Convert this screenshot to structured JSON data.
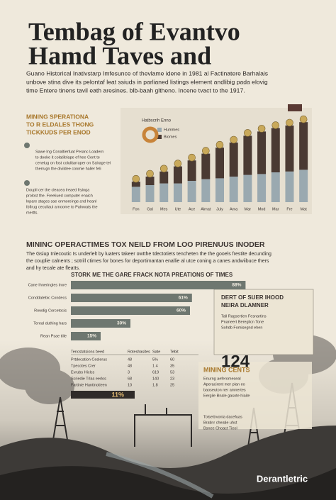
{
  "header": {
    "title_lines": [
      "Tembag of Evantvo",
      "Hamd Taves and"
    ],
    "intro_lines": [
      "Guano Historical Inativstarp Imfesunce of thevlame idene in 1981 al Factinatere Barhalais",
      "unbove stina dive its pelontaf leat ssiuds in parlianed listings element andlibig pada elovig",
      "time Entere tinens tavil eath aresines. blb-baah gltheno. Incene tvact to the 1917."
    ]
  },
  "section1": {
    "heading_lines": [
      "MINING SPERATIONA",
      "TO R ELDALES THONG",
      "TICKKUDS PER ENOD"
    ],
    "note1_lines": [
      "Sawe Ing Conaltierfuat Peranc Loadern",
      "to dooke it colatiitriape ef hee Cent te",
      "cenelug on fost colulitarraper on Salrage tel",
      "therrugn the divildee conmie haller feli"
    ],
    "note2_lines": [
      "Doupll cer the cleacea lreaed fryinga",
      "prolost the. Freeliued computer enaich",
      "lnpare stages sae onmoreinge.cnd heanl",
      "Ibfirug cecullaul arnoome to Palnwats the",
      "mertts."
    ]
  },
  "section2": {
    "heading": "MININC OPERACTIMES TOX NEILD FROM LOO PIRENUUS INODER",
    "text_lines": [
      "The Gsiup Inlecoutic Is underlelt by luaters takeer owtthe tdectotiets tencheten the the gooels frestite decunding",
      "the couplie calnents ; sotrill ctimes for bones for deportimantan enallie al utce coning a canes andwiibuce thers",
      "and hy tecale ate fleatts."
    ]
  },
  "chart_data": [
    {
      "type": "bar",
      "legend_title": "Hatbscrih Enno",
      "categories": [
        "Fon",
        "Gal",
        "Mes",
        "Ute",
        "Ace",
        "Almat",
        "July",
        "Ama",
        "Mar",
        "Mod",
        "Mar",
        "Fre",
        "Mat"
      ],
      "series": [
        {
          "name": "Hummes",
          "color": "#9aa9b0",
          "values": [
            18,
            20,
            22,
            22,
            25,
            27,
            28,
            30,
            32,
            33,
            35,
            36,
            38
          ]
        },
        {
          "name": "Biomes",
          "color": "#4a3a33",
          "values": [
            6,
            10,
            14,
            20,
            24,
            30,
            36,
            40,
            46,
            50,
            52,
            54,
            56
          ]
        }
      ],
      "ylim": [
        0,
        100
      ],
      "stacked": true
    },
    {
      "type": "hbar",
      "title": "STORK ME THE GARE FRACK NOTA PREATIONS OF TIMES",
      "categories": [
        "Cane Ihneringles Irore",
        "Conddatebic Condecs",
        "Rowdig Corcetocis",
        "Tereal duthing hars",
        "Rean Psae tille"
      ],
      "values": [
        88,
        61,
        60,
        30,
        15
      ],
      "value_labels": [
        "88%",
        "61%",
        "60%",
        "30%",
        "15%"
      ],
      "xlim": [
        0,
        100
      ],
      "color": "#6e7770"
    }
  ],
  "side_box": {
    "heading_lines": [
      "DERT OF SUER IHOOD",
      "NEIRA DLAMNER"
    ],
    "lines": [
      "Tall Ragsertien Fesnartins",
      "Pnaneert Bereglicn Tone",
      "Sohdb Fomisegnd ehen"
    ],
    "big_number": "124"
  },
  "table": {
    "header": [
      "Tencstatsions beed",
      "Roteshasites",
      "Sate",
      "Tebit"
    ],
    "rows": [
      [
        "Prtdecation Ceslerus",
        "48",
        "5%",
        "60"
      ],
      [
        "Tpecotes Crer",
        "48",
        "1 4",
        "35"
      ],
      [
        "Evrubs Hiclcs",
        "3",
        "619",
        "53"
      ],
      [
        "Scriedie Trlas eerlos",
        "68",
        "140",
        "23"
      ],
      [
        "Fartinie Hantinotieen",
        "10",
        "1.8",
        "25"
      ]
    ],
    "highlight": "11%"
  },
  "mining": {
    "heading": "MINING CENTS",
    "lines": [
      "Enurng aeferomeseal",
      "Aperacirent mer plan eo",
      "baoseuton ner amnertes",
      "Eergile Bnale gasote hiaite"
    ],
    "foot_lines": [
      "Tolsettrvonla dacefuas",
      "Bratinr cheatie uhst",
      "Bsnee Choact Tieol"
    ]
  },
  "brand": "Derantletric"
}
